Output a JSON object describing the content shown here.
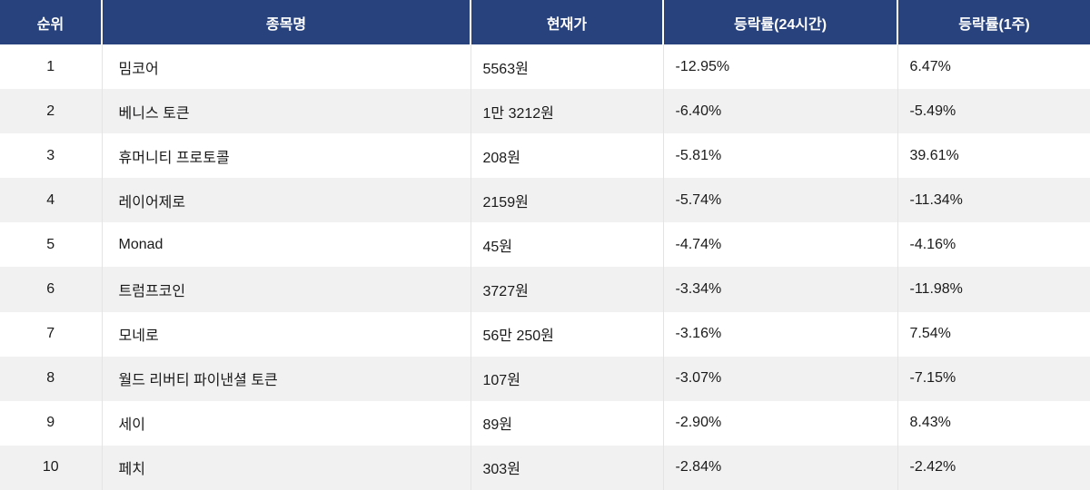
{
  "table": {
    "columns": [
      {
        "key": "rank",
        "label": "순위"
      },
      {
        "key": "name",
        "label": "종목명"
      },
      {
        "key": "price",
        "label": "현재가"
      },
      {
        "key": "change_24h",
        "label": "등락률(24시간)"
      },
      {
        "key": "change_1w",
        "label": "등락률(1주)"
      }
    ],
    "rows": [
      {
        "rank": "1",
        "name": "밈코어",
        "price": "5563원",
        "change_24h": "-12.95%",
        "change_1w": "6.47%"
      },
      {
        "rank": "2",
        "name": "베니스 토큰",
        "price": "1만 3212원",
        "change_24h": "-6.40%",
        "change_1w": "-5.49%"
      },
      {
        "rank": "3",
        "name": "휴머니티 프로토콜",
        "price": "208원",
        "change_24h": "-5.81%",
        "change_1w": "39.61%"
      },
      {
        "rank": "4",
        "name": "레이어제로",
        "price": "2159원",
        "change_24h": "-5.74%",
        "change_1w": "-11.34%"
      },
      {
        "rank": "5",
        "name": "Monad",
        "price": "45원",
        "change_24h": "-4.74%",
        "change_1w": "-4.16%"
      },
      {
        "rank": "6",
        "name": "트럼프코인",
        "price": "3727원",
        "change_24h": "-3.34%",
        "change_1w": "-11.98%"
      },
      {
        "rank": "7",
        "name": "모네로",
        "price": "56만 250원",
        "change_24h": "-3.16%",
        "change_1w": "7.54%"
      },
      {
        "rank": "8",
        "name": "월드 리버티 파이낸셜 토큰",
        "price": "107원",
        "change_24h": "-3.07%",
        "change_1w": "-7.15%"
      },
      {
        "rank": "9",
        "name": "세이",
        "price": "89원",
        "change_24h": "-2.90%",
        "change_1w": "8.43%"
      },
      {
        "rank": "10",
        "name": "페치",
        "price": "303원",
        "change_24h": "-2.84%",
        "change_1w": "-2.42%"
      }
    ]
  },
  "colors": {
    "header_bg": "#28427E",
    "header_text": "#FFFFFF",
    "body_text": "#1A1A1A",
    "stripe_bg": "#F1F1F2",
    "cell_border": "#E4E4E4"
  }
}
